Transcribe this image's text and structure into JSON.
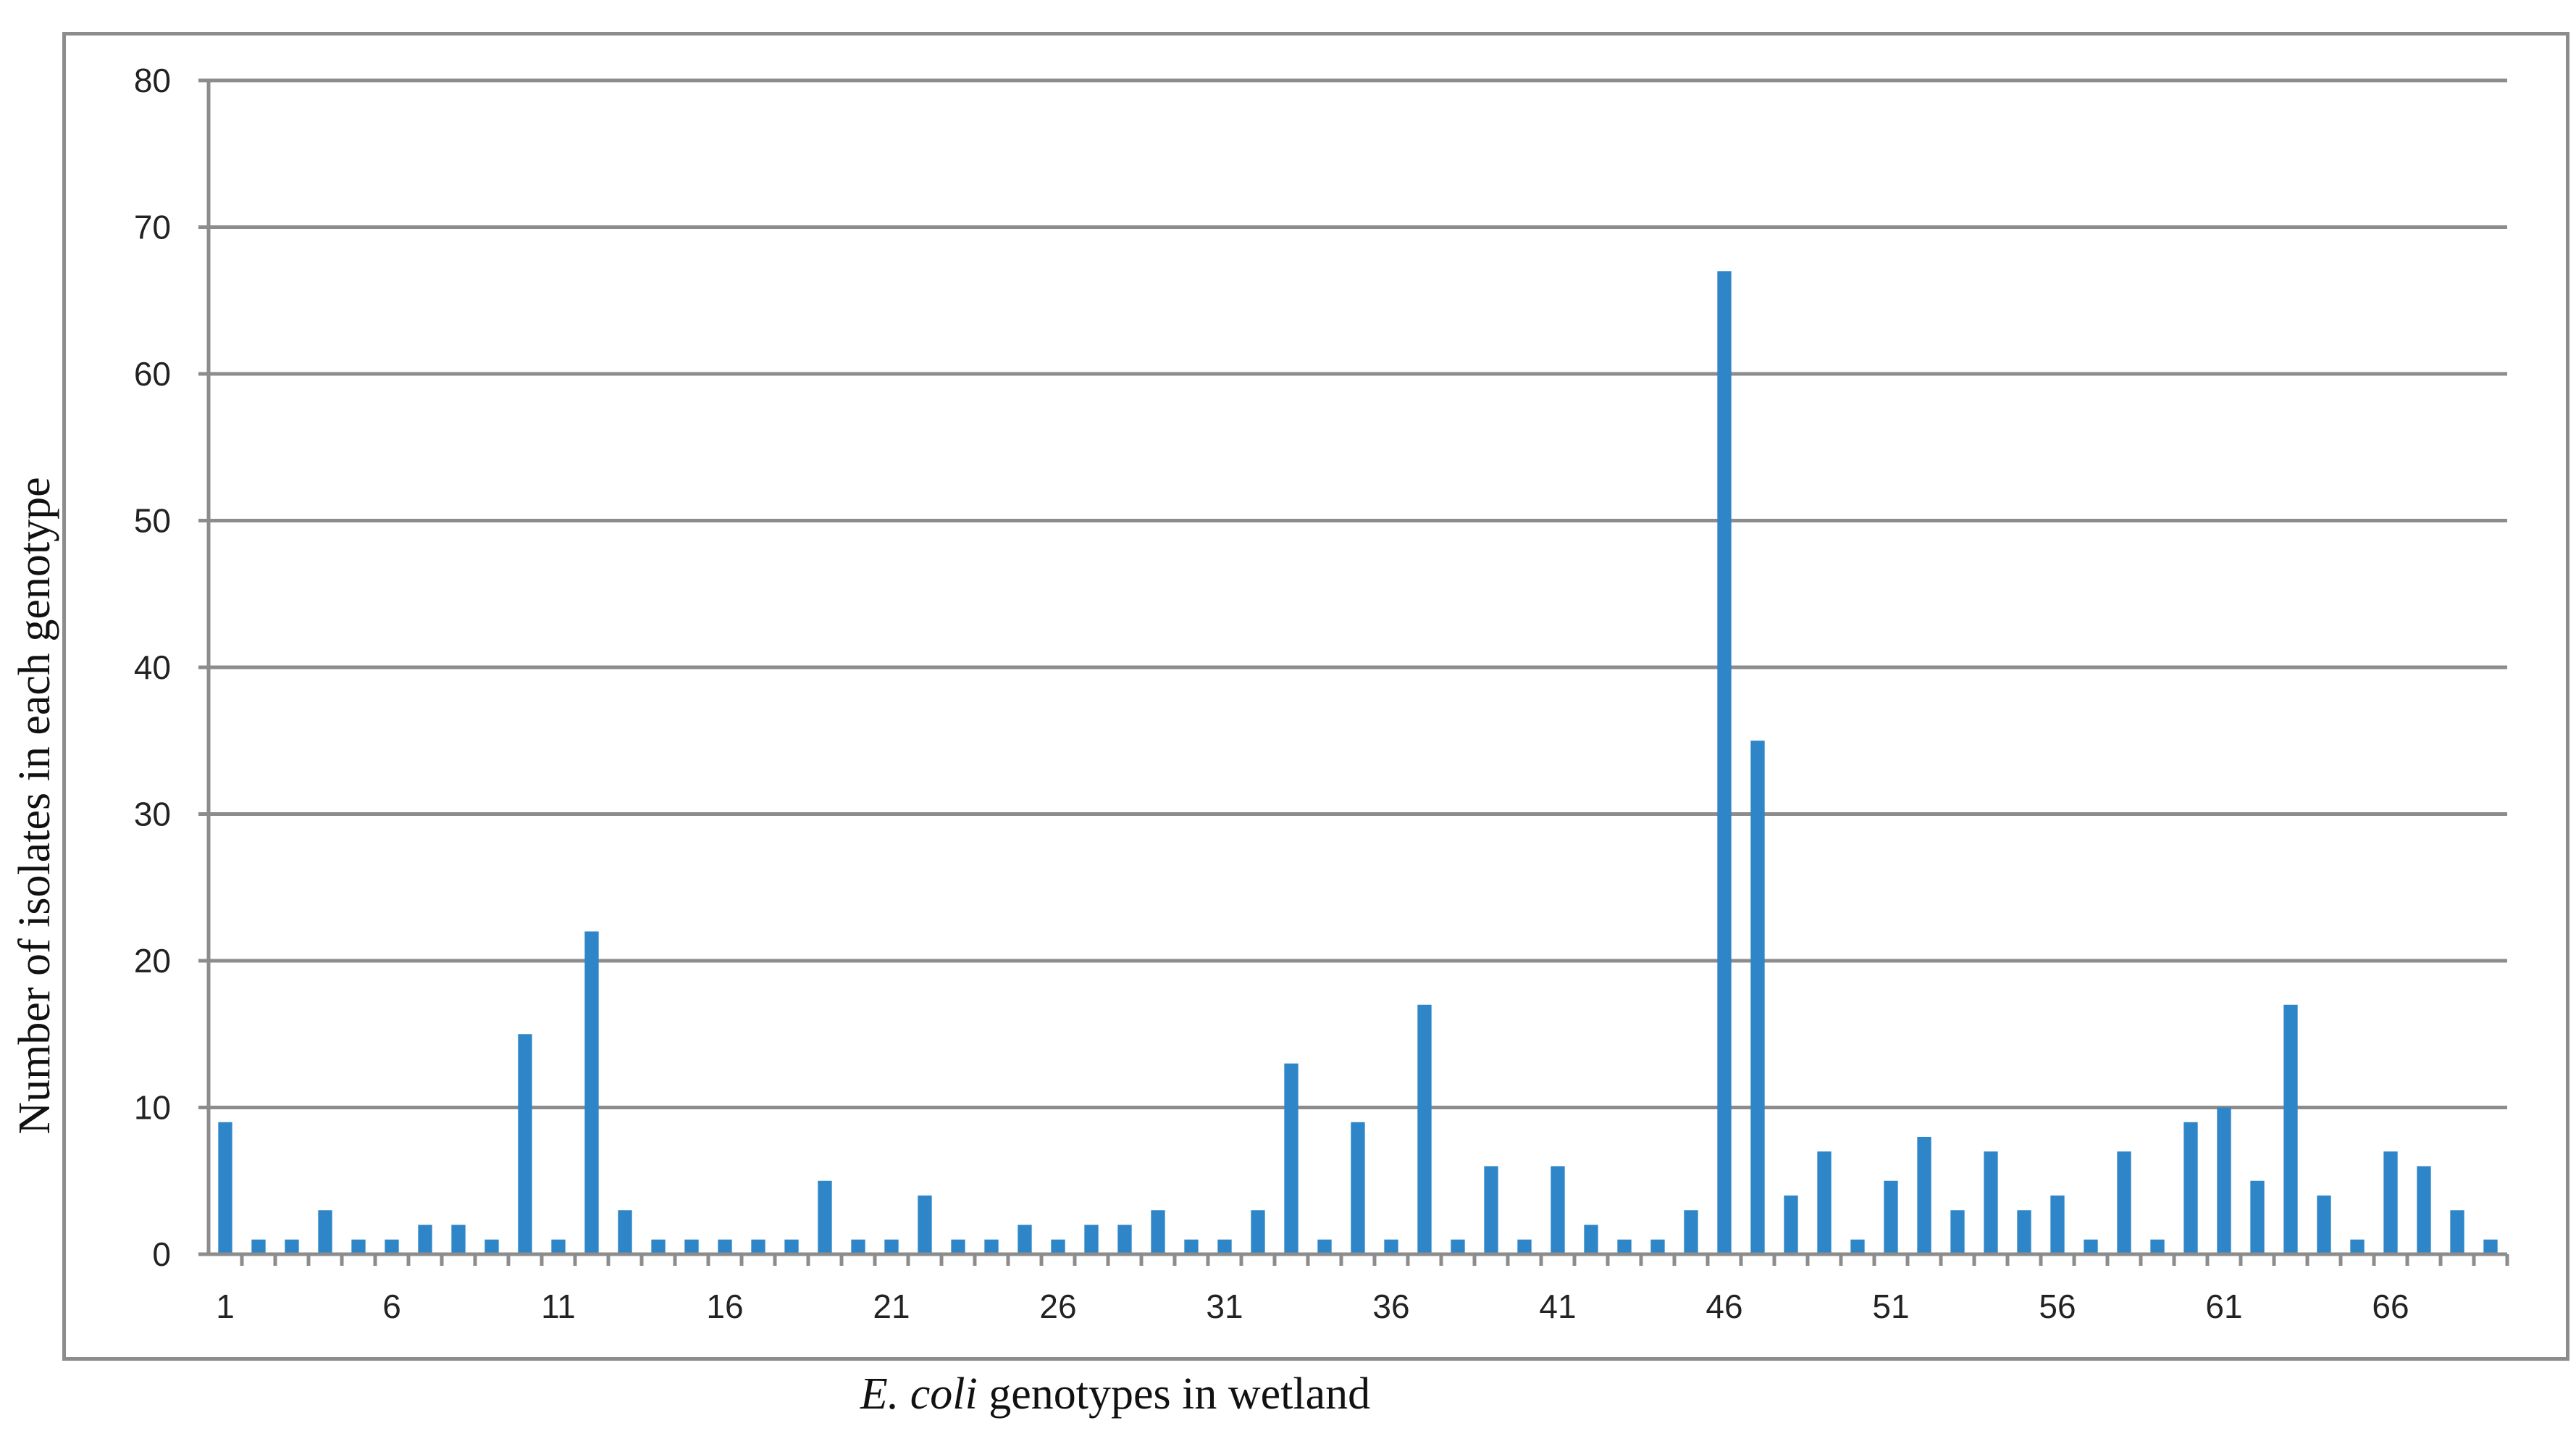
{
  "chart_data": {
    "type": "bar",
    "ylabel": "Number of isolates in each genotype",
    "xlabel_italic": "E. coli",
    "xlabel_rest": " genotypes in wetland",
    "ylim": [
      0,
      80
    ],
    "yticks": [
      0,
      10,
      20,
      30,
      40,
      50,
      60,
      70,
      80
    ],
    "grid": true,
    "legend": "none",
    "bar_color": "#2e86c8",
    "grid_color": "#8c8c8c",
    "xtick_labels": [
      "1",
      "6",
      "11",
      "16",
      "21",
      "26",
      "31",
      "36",
      "41",
      "46",
      "51",
      "56",
      "61",
      "66"
    ],
    "categories": [
      1,
      2,
      3,
      4,
      5,
      6,
      7,
      8,
      9,
      10,
      11,
      12,
      13,
      14,
      15,
      16,
      17,
      18,
      19,
      20,
      21,
      22,
      23,
      24,
      25,
      26,
      27,
      28,
      29,
      30,
      31,
      32,
      33,
      34,
      35,
      36,
      37,
      38,
      39,
      40,
      41,
      42,
      43,
      44,
      45,
      46,
      47,
      48,
      49,
      50,
      51,
      52,
      53,
      54,
      55,
      56,
      57,
      58,
      59,
      60,
      61,
      62,
      63,
      64,
      65,
      66,
      67,
      68,
      69
    ],
    "values": [
      9,
      1,
      1,
      3,
      1,
      1,
      2,
      2,
      1,
      15,
      1,
      22,
      3,
      1,
      1,
      1,
      1,
      1,
      5,
      1,
      1,
      4,
      1,
      1,
      2,
      1,
      2,
      2,
      3,
      1,
      1,
      3,
      13,
      1,
      9,
      1,
      17,
      1,
      6,
      1,
      6,
      2,
      1,
      1,
      3,
      67,
      35,
      4,
      7,
      1,
      5,
      8,
      3,
      7,
      3,
      4,
      1,
      7,
      1,
      9,
      10,
      5,
      17,
      4,
      1,
      7,
      6,
      3,
      1
    ]
  }
}
